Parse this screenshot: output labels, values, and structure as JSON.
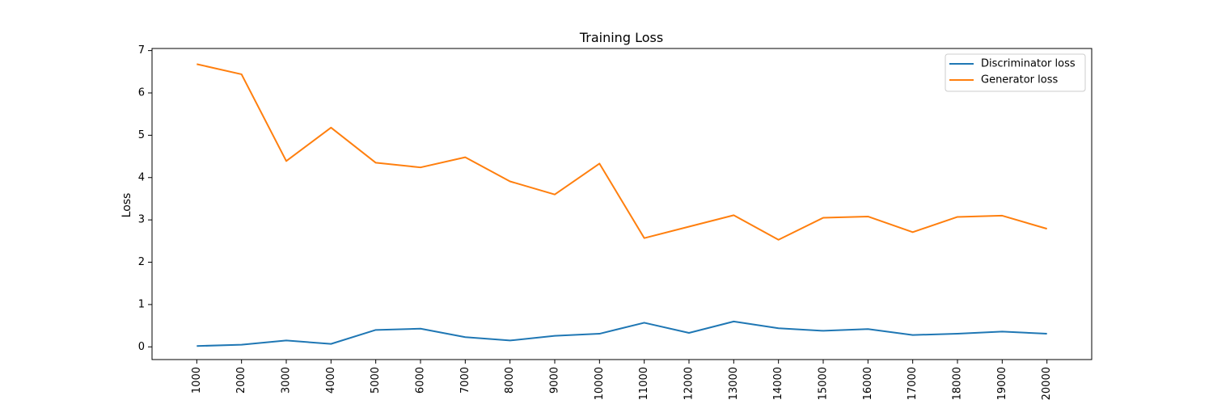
{
  "chart_data": {
    "type": "line",
    "title": "Training Loss",
    "xlabel": "",
    "ylabel": "Loss",
    "x": [
      1000,
      2000,
      3000,
      4000,
      5000,
      6000,
      7000,
      8000,
      9000,
      10000,
      11000,
      12000,
      13000,
      14000,
      15000,
      16000,
      17000,
      18000,
      19000,
      20000
    ],
    "x_tick_labels": [
      "1000",
      "2000",
      "3000",
      "4000",
      "5000",
      "6000",
      "7000",
      "8000",
      "9000",
      "10000",
      "11000",
      "12000",
      "13000",
      "14000",
      "15000",
      "16000",
      "17000",
      "18000",
      "19000",
      "20000"
    ],
    "y_ticks": [
      0,
      1,
      2,
      3,
      4,
      5,
      6,
      7
    ],
    "ylim": [
      -0.3,
      7.05
    ],
    "xlim": [
      0,
      21000
    ],
    "grid": false,
    "legend_position": "upper right",
    "series": [
      {
        "name": "Discriminator loss",
        "color": "#1f77b4",
        "values": [
          0.02,
          0.05,
          0.15,
          0.07,
          0.4,
          0.43,
          0.23,
          0.15,
          0.26,
          0.31,
          0.57,
          0.33,
          0.6,
          0.44,
          0.38,
          0.42,
          0.28,
          0.31,
          0.36,
          0.31
        ]
      },
      {
        "name": "Generator loss",
        "color": "#ff7f0e",
        "values": [
          6.68,
          6.44,
          4.39,
          5.18,
          4.35,
          4.24,
          4.48,
          3.91,
          3.6,
          4.33,
          2.57,
          2.84,
          3.11,
          2.53,
          3.05,
          3.08,
          2.71,
          3.07,
          3.1,
          2.79
        ]
      }
    ]
  }
}
